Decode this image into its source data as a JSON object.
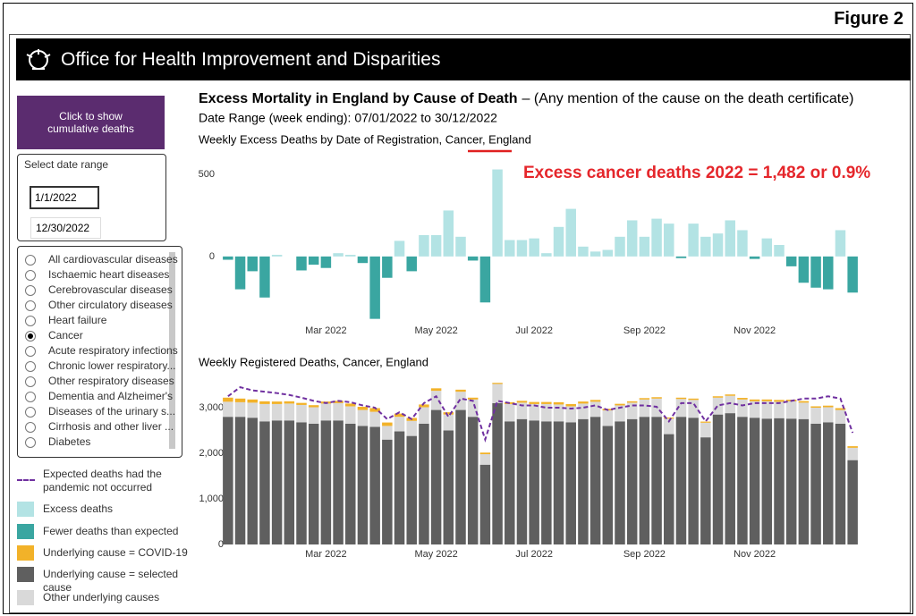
{
  "figure_label": "Figure 2",
  "header": {
    "org": "Office for Health Improvement and Disparities"
  },
  "title": "Excess Mortality in England by Cause of Death",
  "title_note": "– (Any mention of the cause on the death certificate)",
  "date_range": "Date Range (week ending): 07/01/2022 to 30/12/2022",
  "sidebar": {
    "button": "Click to show cumulative deaths",
    "date_select": {
      "label": "Select date range",
      "start": "1/1/2022",
      "end": "12/30/2022"
    },
    "causes": [
      "All cardiovascular diseases",
      "Ischaemic heart diseases",
      "Cerebrovascular diseases",
      "Other circulatory diseases",
      "Heart failure",
      "Cancer",
      "Acute respiratory infections",
      "Chronic lower respiratory...",
      "Other respiratory diseases",
      "Dementia and Alzheimer's",
      "Diseases of the urinary s...",
      "Cirrhosis and other liver ...",
      "Diabetes"
    ],
    "selected_cause": 5
  },
  "chart_data": [
    {
      "type": "bar",
      "title": "Weekly Excess Deaths by Date of Registration, Cancer, England",
      "annotation": "Excess cancer deaths 2022 = 1,482 or 0.9%",
      "categories": [
        null,
        null,
        null,
        null,
        null,
        null,
        null,
        null,
        "Mar 2022",
        null,
        null,
        null,
        null,
        null,
        null,
        null,
        null,
        "May 2022",
        null,
        null,
        null,
        null,
        null,
        null,
        null,
        "Jul 2022",
        null,
        null,
        null,
        null,
        null,
        null,
        null,
        null,
        "Sep 2022",
        null,
        null,
        null,
        null,
        null,
        null,
        null,
        null,
        "Nov 2022",
        null,
        null,
        null,
        null,
        null,
        null,
        null,
        null
      ],
      "values": [
        -20,
        -200,
        -90,
        -250,
        10,
        0,
        -85,
        -50,
        -70,
        20,
        10,
        -40,
        -380,
        -130,
        95,
        -90,
        130,
        130,
        280,
        120,
        -25,
        -280,
        530,
        100,
        100,
        110,
        20,
        180,
        290,
        60,
        30,
        40,
        120,
        220,
        120,
        230,
        200,
        -10,
        200,
        120,
        140,
        220,
        160,
        -15,
        110,
        70,
        -60,
        -160,
        -190,
        -200,
        160,
        -220
      ],
      "color_positive": "#b3e3e4",
      "color_negative": "#3aa6a1",
      "legend": [
        "Excess deaths",
        "Fewer deaths than expected"
      ],
      "ylim": [
        -420,
        560
      ],
      "yticks": [
        0,
        500
      ]
    },
    {
      "type": "stacked_bar",
      "title": "Weekly Registered Deaths, Cancer, England",
      "categories": [
        null,
        null,
        null,
        null,
        null,
        null,
        null,
        null,
        "Mar 2022",
        null,
        null,
        null,
        null,
        null,
        null,
        null,
        null,
        "May 2022",
        null,
        null,
        null,
        null,
        null,
        null,
        null,
        "Jul 2022",
        null,
        null,
        null,
        null,
        null,
        null,
        null,
        null,
        "Sep 2022",
        null,
        null,
        null,
        null,
        null,
        null,
        null,
        null,
        "Nov 2022",
        null,
        null,
        null,
        null,
        null,
        null,
        null,
        null
      ],
      "series": [
        {
          "name": "Underlying cause = selected cause",
          "color": "#5f5f5f",
          "values": [
            2800,
            2800,
            2780,
            2700,
            2720,
            2720,
            2680,
            2650,
            2720,
            2720,
            2650,
            2600,
            2580,
            2300,
            2480,
            2380,
            2650,
            2950,
            2500,
            2950,
            2800,
            1750,
            3100,
            2700,
            2750,
            2720,
            2700,
            2700,
            2680,
            2750,
            2800,
            2600,
            2700,
            2750,
            2800,
            2800,
            2420,
            2800,
            2780,
            2350,
            2850,
            2880,
            2800,
            2780,
            2760,
            2770,
            2760,
            2750,
            2650,
            2680,
            2650,
            1850
          ]
        },
        {
          "name": "Other underlying causes",
          "color": "#d9d9d9",
          "values": [
            330,
            320,
            330,
            380,
            360,
            370,
            380,
            360,
            370,
            380,
            380,
            350,
            330,
            300,
            320,
            330,
            360,
            420,
            350,
            400,
            380,
            230,
            420,
            380,
            360,
            360,
            380,
            370,
            350,
            340,
            330,
            340,
            350,
            360,
            380,
            400,
            340,
            390,
            390,
            320,
            370,
            380,
            380,
            360,
            380,
            360,
            380,
            360,
            350,
            330,
            300,
            270
          ]
        },
        {
          "name": "Underlying cause  = COVID-19",
          "color": "#f2b229",
          "values": [
            90,
            80,
            70,
            60,
            55,
            50,
            45,
            45,
            45,
            50,
            60,
            70,
            80,
            75,
            70,
            65,
            60,
            55,
            50,
            45,
            40,
            35,
            25,
            40,
            40,
            45,
            45,
            50,
            50,
            45,
            40,
            35,
            35,
            30,
            30,
            30,
            25,
            30,
            30,
            25,
            30,
            30,
            35,
            40,
            40,
            40,
            35,
            35,
            30,
            35,
            40,
            35
          ]
        },
        {
          "name": "Expected deaths had the pandemic not occurred",
          "type": "line",
          "color": "#7030a0",
          "values": [
            3250,
            3450,
            3380,
            3350,
            3320,
            3280,
            3220,
            3150,
            3100,
            3150,
            3120,
            3050,
            3000,
            2750,
            2900,
            2750,
            3100,
            3250,
            2800,
            3200,
            3150,
            2300,
            3150,
            3100,
            3050,
            3050,
            3000,
            3000,
            2980,
            3000,
            3050,
            2950,
            3000,
            3050,
            3050,
            3020,
            2700,
            3100,
            3100,
            2700,
            3050,
            3100,
            3050,
            3100,
            3100,
            3100,
            3150,
            3200,
            3200,
            3250,
            3200,
            2450
          ]
        }
      ],
      "ylim": [
        0,
        3500
      ],
      "yticks": [
        0,
        {
          "value": 1000,
          "label": "1,000"
        },
        {
          "value": 2000,
          "label": "2,000"
        },
        {
          "value": 3000,
          "label": "3,000"
        }
      ]
    }
  ]
}
